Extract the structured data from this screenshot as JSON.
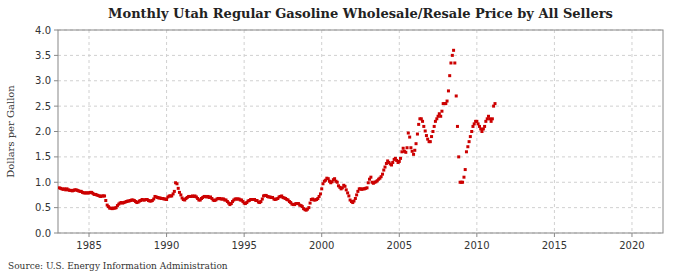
{
  "chart_data": {
    "type": "scatter",
    "title": "Monthly Utah Regular Gasoline Wholesale/Resale Price by All Sellers",
    "y_label": "Dollars per Gallon",
    "annotations": [
      "Source: U.S. Energy Information Administration"
    ],
    "color": "#cc0000",
    "marker": "square",
    "grid": true,
    "xlim": [
      1983.0,
      2022.0
    ],
    "ylim": [
      0.0,
      4.0
    ],
    "xticks": [
      1985,
      1990,
      1995,
      2000,
      2005,
      2010,
      2015,
      2020
    ],
    "yticks": [
      {
        "value": 0.0,
        "label": "0.0"
      },
      0.5,
      {
        "value": 1.0,
        "label": "1.0"
      },
      1.5,
      {
        "value": 2.0,
        "label": "2.0"
      },
      2.5,
      {
        "value": 3.0,
        "label": "3.0"
      },
      3.5,
      {
        "value": 4.0,
        "label": "4.0"
      }
    ],
    "x": [
      1983.08,
      1983.17,
      1983.25,
      1983.33,
      1983.42,
      1983.5,
      1983.58,
      1983.67,
      1983.75,
      1983.83,
      1983.92,
      1984.0,
      1984.08,
      1984.17,
      1984.25,
      1984.33,
      1984.42,
      1984.5,
      1984.58,
      1984.67,
      1984.75,
      1984.83,
      1984.92,
      1985.0,
      1985.08,
      1985.17,
      1985.25,
      1985.33,
      1985.42,
      1985.5,
      1985.58,
      1985.67,
      1985.75,
      1985.83,
      1985.92,
      1986.0,
      1986.08,
      1986.17,
      1986.25,
      1986.33,
      1986.42,
      1986.5,
      1986.58,
      1986.67,
      1986.75,
      1986.83,
      1986.92,
      1987.0,
      1987.08,
      1987.17,
      1987.25,
      1987.33,
      1987.42,
      1987.5,
      1987.58,
      1987.67,
      1987.75,
      1987.83,
      1987.92,
      1988.0,
      1988.08,
      1988.17,
      1988.25,
      1988.33,
      1988.42,
      1988.5,
      1988.58,
      1988.67,
      1988.75,
      1988.83,
      1988.92,
      1989.0,
      1989.08,
      1989.17,
      1989.25,
      1989.33,
      1989.42,
      1989.5,
      1989.58,
      1989.67,
      1989.75,
      1989.83,
      1989.92,
      1990.0,
      1990.08,
      1990.17,
      1990.25,
      1990.33,
      1990.42,
      1990.5,
      1990.58,
      1990.67,
      1990.75,
      1990.83,
      1990.92,
      1991.0,
      1991.08,
      1991.17,
      1991.25,
      1991.33,
      1991.42,
      1991.5,
      1991.58,
      1991.67,
      1991.75,
      1991.83,
      1991.92,
      1992.0,
      1992.08,
      1992.17,
      1992.25,
      1992.33,
      1992.42,
      1992.5,
      1992.58,
      1992.67,
      1992.75,
      1992.83,
      1992.92,
      1993.0,
      1993.08,
      1993.17,
      1993.25,
      1993.33,
      1993.42,
      1993.5,
      1993.58,
      1993.67,
      1993.75,
      1993.83,
      1993.92,
      1994.0,
      1994.08,
      1994.17,
      1994.25,
      1994.33,
      1994.42,
      1994.5,
      1994.58,
      1994.67,
      1994.75,
      1994.83,
      1994.92,
      1995.0,
      1995.08,
      1995.17,
      1995.25,
      1995.33,
      1995.42,
      1995.5,
      1995.58,
      1995.67,
      1995.75,
      1995.83,
      1995.92,
      1996.0,
      1996.08,
      1996.17,
      1996.25,
      1996.33,
      1996.42,
      1996.5,
      1996.58,
      1996.67,
      1996.75,
      1996.83,
      1996.92,
      1997.0,
      1997.08,
      1997.17,
      1997.25,
      1997.33,
      1997.42,
      1997.5,
      1997.58,
      1997.67,
      1997.75,
      1997.83,
      1997.92,
      1998.0,
      1998.08,
      1998.17,
      1998.25,
      1998.33,
      1998.42,
      1998.5,
      1998.58,
      1998.67,
      1998.75,
      1998.83,
      1998.92,
      1999.0,
      1999.08,
      1999.17,
      1999.25,
      1999.33,
      1999.42,
      1999.5,
      1999.58,
      1999.67,
      1999.75,
      1999.83,
      1999.92,
      2000.0,
      2000.08,
      2000.17,
      2000.25,
      2000.33,
      2000.42,
      2000.5,
      2000.58,
      2000.67,
      2000.75,
      2000.83,
      2000.92,
      2001.0,
      2001.08,
      2001.17,
      2001.25,
      2001.33,
      2001.42,
      2001.5,
      2001.58,
      2001.67,
      2001.75,
      2001.83,
      2001.92,
      2002.0,
      2002.08,
      2002.17,
      2002.25,
      2002.33,
      2002.42,
      2002.5,
      2002.58,
      2002.67,
      2002.75,
      2002.83,
      2002.92,
      2003.0,
      2003.08,
      2003.17,
      2003.25,
      2003.33,
      2003.42,
      2003.5,
      2003.58,
      2003.67,
      2003.75,
      2003.83,
      2003.92,
      2004.0,
      2004.08,
      2004.17,
      2004.25,
      2004.33,
      2004.42,
      2004.5,
      2004.58,
      2004.67,
      2004.75,
      2004.83,
      2004.92,
      2005.0,
      2005.08,
      2005.17,
      2005.25,
      2005.33,
      2005.42,
      2005.5,
      2005.58,
      2005.67,
      2005.75,
      2005.83,
      2005.92,
      2006.0,
      2006.08,
      2006.17,
      2006.25,
      2006.33,
      2006.42,
      2006.5,
      2006.58,
      2006.67,
      2006.75,
      2006.83,
      2006.92,
      2007.0,
      2007.08,
      2007.17,
      2007.25,
      2007.33,
      2007.42,
      2007.5,
      2007.58,
      2007.67,
      2007.75,
      2007.83,
      2007.92,
      2008.0,
      2008.08,
      2008.17,
      2008.25,
      2008.33,
      2008.42,
      2008.5,
      2008.58,
      2008.67,
      2008.75,
      2008.83,
      2008.92,
      2009.0,
      2009.08,
      2009.17,
      2009.25,
      2009.33,
      2009.42,
      2009.5,
      2009.58,
      2009.67,
      2009.75,
      2009.83,
      2009.92,
      2010.0,
      2010.08,
      2010.17,
      2010.25,
      2010.33,
      2010.42,
      2010.5,
      2010.58,
      2010.67,
      2010.75,
      2010.83,
      2010.92,
      2011.0,
      2011.08,
      2011.17
    ],
    "values": [
      0.89,
      0.88,
      0.87,
      0.86,
      0.87,
      0.85,
      0.87,
      0.85,
      0.84,
      0.84,
      0.83,
      0.84,
      0.85,
      0.85,
      0.84,
      0.83,
      0.82,
      0.82,
      0.8,
      0.79,
      0.79,
      0.79,
      0.79,
      0.79,
      0.8,
      0.8,
      0.78,
      0.76,
      0.76,
      0.75,
      0.74,
      0.73,
      0.72,
      0.73,
      0.73,
      0.73,
      0.64,
      0.55,
      0.52,
      0.49,
      0.49,
      0.48,
      0.49,
      0.49,
      0.5,
      0.54,
      0.57,
      0.59,
      0.6,
      0.59,
      0.6,
      0.61,
      0.62,
      0.63,
      0.63,
      0.64,
      0.65,
      0.65,
      0.64,
      0.62,
      0.6,
      0.61,
      0.63,
      0.64,
      0.66,
      0.65,
      0.65,
      0.66,
      0.66,
      0.64,
      0.63,
      0.63,
      0.64,
      0.67,
      0.72,
      0.71,
      0.7,
      0.69,
      0.69,
      0.68,
      0.68,
      0.67,
      0.67,
      0.66,
      0.71,
      0.73,
      0.73,
      0.73,
      0.77,
      0.82,
      0.99,
      0.97,
      0.88,
      0.8,
      0.75,
      0.69,
      0.66,
      0.65,
      0.68,
      0.7,
      0.72,
      0.72,
      0.72,
      0.73,
      0.72,
      0.73,
      0.71,
      0.68,
      0.65,
      0.65,
      0.68,
      0.7,
      0.72,
      0.72,
      0.71,
      0.72,
      0.7,
      0.71,
      0.68,
      0.65,
      0.64,
      0.65,
      0.67,
      0.68,
      0.68,
      0.67,
      0.67,
      0.67,
      0.65,
      0.65,
      0.62,
      0.59,
      0.56,
      0.58,
      0.62,
      0.65,
      0.67,
      0.67,
      0.67,
      0.67,
      0.65,
      0.65,
      0.62,
      0.59,
      0.58,
      0.6,
      0.63,
      0.64,
      0.66,
      0.66,
      0.66,
      0.66,
      0.64,
      0.64,
      0.61,
      0.6,
      0.62,
      0.67,
      0.73,
      0.74,
      0.74,
      0.72,
      0.71,
      0.71,
      0.7,
      0.7,
      0.67,
      0.66,
      0.67,
      0.68,
      0.71,
      0.72,
      0.73,
      0.7,
      0.69,
      0.68,
      0.66,
      0.65,
      0.62,
      0.6,
      0.57,
      0.56,
      0.56,
      0.58,
      0.58,
      0.58,
      0.55,
      0.54,
      0.52,
      0.48,
      0.46,
      0.45,
      0.47,
      0.5,
      0.59,
      0.66,
      0.67,
      0.65,
      0.65,
      0.66,
      0.68,
      0.72,
      0.77,
      0.87,
      0.97,
      1.02,
      1.04,
      1.08,
      1.07,
      1.02,
      0.99,
      1.01,
      1.05,
      1.07,
      1.02,
      1.0,
      0.93,
      0.9,
      0.87,
      0.89,
      0.94,
      0.92,
      0.85,
      0.79,
      0.73,
      0.65,
      0.62,
      0.6,
      0.63,
      0.68,
      0.75,
      0.82,
      0.87,
      0.87,
      0.86,
      0.87,
      0.87,
      0.88,
      0.89,
      0.99,
      1.06,
      1.1,
      1.0,
      0.98,
      1.0,
      1.01,
      1.03,
      1.06,
      1.08,
      1.11,
      1.16,
      1.24,
      1.3,
      1.37,
      1.42,
      1.39,
      1.36,
      1.34,
      1.39,
      1.45,
      1.47,
      1.43,
      1.39,
      1.41,
      1.47,
      1.6,
      1.67,
      1.61,
      1.59,
      1.68,
      1.97,
      1.89,
      1.68,
      1.61,
      1.55,
      1.63,
      1.76,
      1.95,
      2.14,
      2.25,
      2.25,
      2.2,
      2.1,
      2.01,
      1.92,
      1.85,
      1.8,
      1.8,
      1.9,
      2.0,
      2.1,
      2.2,
      2.25,
      2.3,
      2.35,
      2.3,
      2.4,
      2.55,
      2.55,
      2.55,
      2.6,
      2.8,
      3.1,
      3.35,
      3.5,
      3.6,
      3.35,
      2.7,
      2.1,
      1.5,
      1.0,
      1.0,
      1.0,
      1.1,
      1.25,
      1.6,
      1.7,
      1.8,
      1.9,
      2.0,
      2.1,
      2.15,
      2.2,
      2.2,
      2.15,
      2.1,
      2.05,
      2.0,
      2.05,
      2.1,
      2.2,
      2.25,
      2.3,
      2.25,
      2.2,
      2.25,
      2.5,
      2.55
    ]
  }
}
